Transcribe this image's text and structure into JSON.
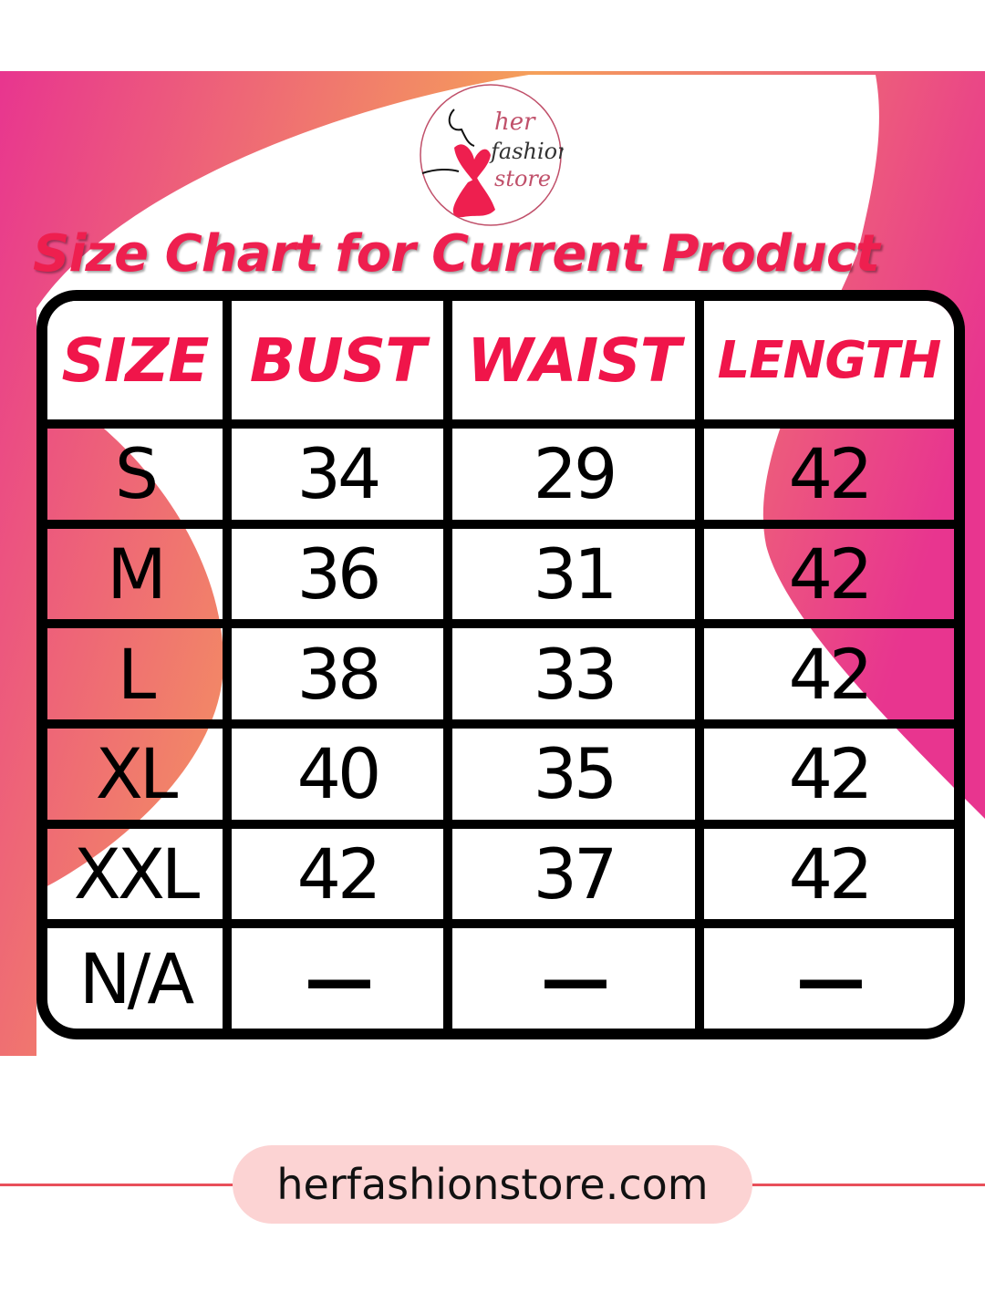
{
  "brand": {
    "logo_text": "her fashion store",
    "accent": "#ee1f4f",
    "gradient": [
      "#e8358f",
      "#f5a05a"
    ]
  },
  "title": "Size Chart for Current Product",
  "table": {
    "headers": [
      "SIZE",
      "BUST",
      "WAIST",
      "LENGTH"
    ],
    "rows": [
      [
        "S",
        "34",
        "29",
        "42"
      ],
      [
        "M",
        "36",
        "31",
        "42"
      ],
      [
        "L",
        "38",
        "33",
        "42"
      ],
      [
        "XL",
        "40",
        "35",
        "42"
      ],
      [
        "XXL",
        "42",
        "37",
        "42"
      ],
      [
        "N/A",
        "—",
        "—",
        "—"
      ]
    ]
  },
  "footer": {
    "website": "herfashionstore.com"
  }
}
